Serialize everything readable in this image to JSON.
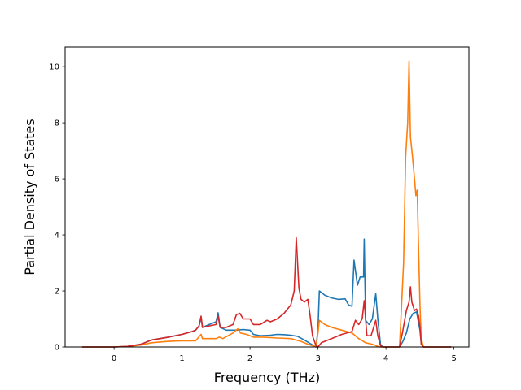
{
  "chart_data": {
    "type": "line",
    "title": "",
    "xlabel": "Frequency (THz)",
    "ylabel": "Partial Density of States",
    "xlim": [
      -0.72,
      5.22
    ],
    "ylim": [
      0,
      10.7
    ],
    "xticks": [
      0,
      1,
      2,
      3,
      4,
      5
    ],
    "yticks": [
      0,
      2,
      4,
      6,
      8,
      10
    ],
    "xtick_labels": [
      "0",
      "1",
      "2",
      "3",
      "4",
      "5"
    ],
    "ytick_labels": [
      "0",
      "2",
      "4",
      "6",
      "8",
      "10"
    ],
    "grid": false,
    "legend": "none",
    "series": [
      {
        "color": "#1f77b4",
        "points": [
          [
            -0.47,
            0
          ],
          [
            0,
            0
          ],
          [
            0.2,
            0.02
          ],
          [
            0.4,
            0.1
          ],
          [
            0.55,
            0.25
          ],
          [
            0.8,
            0.35
          ],
          [
            1.0,
            0.45
          ],
          [
            1.15,
            0.55
          ],
          [
            1.2,
            0.6
          ],
          [
            1.25,
            0.75
          ],
          [
            1.28,
            1.05
          ],
          [
            1.3,
            0.7
          ],
          [
            1.4,
            0.8
          ],
          [
            1.5,
            0.9
          ],
          [
            1.53,
            1.22
          ],
          [
            1.56,
            0.7
          ],
          [
            1.65,
            0.6
          ],
          [
            1.8,
            0.6
          ],
          [
            1.9,
            0.62
          ],
          [
            2.0,
            0.6
          ],
          [
            2.05,
            0.45
          ],
          [
            2.15,
            0.4
          ],
          [
            2.3,
            0.42
          ],
          [
            2.4,
            0.45
          ],
          [
            2.5,
            0.44
          ],
          [
            2.6,
            0.42
          ],
          [
            2.7,
            0.38
          ],
          [
            2.8,
            0.25
          ],
          [
            2.9,
            0.1
          ],
          [
            2.95,
            0.02
          ],
          [
            2.97,
            0
          ],
          [
            3.0,
            0.6
          ],
          [
            3.02,
            2.0
          ],
          [
            3.1,
            1.85
          ],
          [
            3.2,
            1.75
          ],
          [
            3.3,
            1.7
          ],
          [
            3.4,
            1.72
          ],
          [
            3.45,
            1.5
          ],
          [
            3.5,
            1.45
          ],
          [
            3.53,
            3.1
          ],
          [
            3.58,
            2.2
          ],
          [
            3.62,
            2.5
          ],
          [
            3.67,
            2.5
          ],
          [
            3.68,
            3.85
          ],
          [
            3.7,
            0.95
          ],
          [
            3.75,
            0.8
          ],
          [
            3.8,
            1.0
          ],
          [
            3.85,
            1.9
          ],
          [
            3.88,
            1.0
          ],
          [
            3.92,
            0.1
          ],
          [
            3.95,
            0
          ],
          [
            4.2,
            0
          ],
          [
            4.25,
            0.2
          ],
          [
            4.3,
            0.5
          ],
          [
            4.35,
            1.0
          ],
          [
            4.4,
            1.2
          ],
          [
            4.45,
            1.25
          ],
          [
            4.5,
            0.6
          ],
          [
            4.52,
            0.1
          ],
          [
            4.55,
            0
          ],
          [
            4.96,
            0
          ]
        ]
      },
      {
        "color": "#ff7f0e",
        "points": [
          [
            -0.47,
            0
          ],
          [
            0,
            0
          ],
          [
            0.2,
            0.02
          ],
          [
            0.4,
            0.07
          ],
          [
            0.55,
            0.15
          ],
          [
            0.8,
            0.2
          ],
          [
            1.0,
            0.22
          ],
          [
            1.2,
            0.22
          ],
          [
            1.28,
            0.45
          ],
          [
            1.3,
            0.3
          ],
          [
            1.4,
            0.3
          ],
          [
            1.5,
            0.3
          ],
          [
            1.55,
            0.35
          ],
          [
            1.6,
            0.3
          ],
          [
            1.75,
            0.5
          ],
          [
            1.82,
            0.65
          ],
          [
            1.86,
            0.5
          ],
          [
            1.95,
            0.45
          ],
          [
            2.05,
            0.35
          ],
          [
            2.2,
            0.35
          ],
          [
            2.4,
            0.32
          ],
          [
            2.6,
            0.3
          ],
          [
            2.75,
            0.2
          ],
          [
            2.85,
            0.1
          ],
          [
            2.95,
            0.02
          ],
          [
            2.97,
            0
          ],
          [
            3.0,
            0.5
          ],
          [
            3.02,
            0.95
          ],
          [
            3.1,
            0.8
          ],
          [
            3.2,
            0.7
          ],
          [
            3.35,
            0.6
          ],
          [
            3.5,
            0.5
          ],
          [
            3.6,
            0.3
          ],
          [
            3.7,
            0.15
          ],
          [
            3.8,
            0.1
          ],
          [
            3.85,
            0.05
          ],
          [
            3.9,
            0
          ],
          [
            4.2,
            0
          ],
          [
            4.22,
            1.0
          ],
          [
            4.26,
            3.0
          ],
          [
            4.29,
            6.8
          ],
          [
            4.32,
            8.0
          ],
          [
            4.34,
            10.2
          ],
          [
            4.36,
            7.5
          ],
          [
            4.39,
            6.8
          ],
          [
            4.42,
            6.0
          ],
          [
            4.44,
            5.4
          ],
          [
            4.46,
            5.6
          ],
          [
            4.48,
            3.5
          ],
          [
            4.5,
            1.5
          ],
          [
            4.52,
            0.3
          ],
          [
            4.55,
            0
          ],
          [
            4.96,
            0
          ]
        ]
      },
      {
        "color": "#d62728",
        "points": [
          [
            -0.47,
            0
          ],
          [
            0,
            0
          ],
          [
            0.2,
            0.02
          ],
          [
            0.4,
            0.1
          ],
          [
            0.55,
            0.25
          ],
          [
            0.8,
            0.35
          ],
          [
            1.0,
            0.45
          ],
          [
            1.15,
            0.55
          ],
          [
            1.2,
            0.6
          ],
          [
            1.25,
            0.75
          ],
          [
            1.28,
            1.1
          ],
          [
            1.3,
            0.7
          ],
          [
            1.4,
            0.75
          ],
          [
            1.5,
            0.8
          ],
          [
            1.53,
            1.1
          ],
          [
            1.56,
            0.7
          ],
          [
            1.65,
            0.7
          ],
          [
            1.75,
            0.8
          ],
          [
            1.8,
            1.15
          ],
          [
            1.85,
            1.2
          ],
          [
            1.9,
            1.0
          ],
          [
            2.0,
            1.0
          ],
          [
            2.05,
            0.8
          ],
          [
            2.15,
            0.8
          ],
          [
            2.25,
            0.95
          ],
          [
            2.3,
            0.9
          ],
          [
            2.4,
            1.0
          ],
          [
            2.5,
            1.2
          ],
          [
            2.6,
            1.5
          ],
          [
            2.65,
            2.0
          ],
          [
            2.68,
            3.9
          ],
          [
            2.72,
            2.1
          ],
          [
            2.75,
            1.7
          ],
          [
            2.8,
            1.6
          ],
          [
            2.85,
            1.7
          ],
          [
            2.88,
            1.2
          ],
          [
            2.92,
            0.4
          ],
          [
            2.97,
            0.05
          ],
          [
            3.0,
            0
          ],
          [
            3.05,
            0.15
          ],
          [
            3.2,
            0.3
          ],
          [
            3.35,
            0.45
          ],
          [
            3.5,
            0.55
          ],
          [
            3.55,
            0.95
          ],
          [
            3.6,
            0.8
          ],
          [
            3.65,
            1.0
          ],
          [
            3.68,
            1.65
          ],
          [
            3.72,
            0.4
          ],
          [
            3.78,
            0.4
          ],
          [
            3.85,
            0.95
          ],
          [
            3.88,
            0.4
          ],
          [
            3.92,
            0.05
          ],
          [
            3.95,
            0
          ],
          [
            4.2,
            0
          ],
          [
            4.25,
            0.6
          ],
          [
            4.3,
            1.3
          ],
          [
            4.34,
            1.6
          ],
          [
            4.36,
            2.15
          ],
          [
            4.38,
            1.6
          ],
          [
            4.42,
            1.3
          ],
          [
            4.45,
            1.35
          ],
          [
            4.48,
            1.1
          ],
          [
            4.5,
            0.7
          ],
          [
            4.52,
            0.1
          ],
          [
            4.55,
            0
          ],
          [
            4.96,
            0
          ]
        ]
      }
    ]
  }
}
